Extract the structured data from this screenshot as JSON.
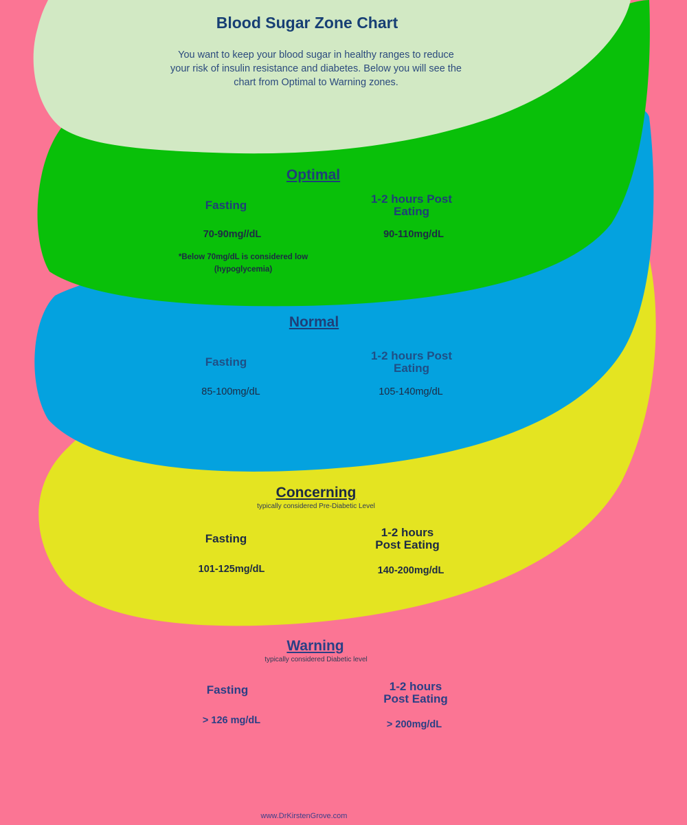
{
  "header": {
    "title": "Blood Sugar Zone Chart",
    "intro": "You want to keep your blood sugar in healthy ranges to reduce your risk of insulin resistance and diabetes.  Below you will see the chart from Optimal to Warning zones."
  },
  "colors": {
    "background": "#fb7594",
    "header_blob": "#d2e9c4",
    "optimal": "#09c009",
    "normal": "#04a2df",
    "concerning": "#e4e421"
  },
  "zones": {
    "optimal": {
      "label": "Optimal",
      "fasting_label": "Fasting",
      "post_label": "1-2 hours Post Eating",
      "fasting_value": "70-90mg//dL",
      "post_value": "90-110mg/dL",
      "note": "*Below 70mg/dL is considered low (hypoglycemia)"
    },
    "normal": {
      "label": "Normal",
      "fasting_label": "Fasting",
      "post_label": "1-2 hours Post Eating",
      "fasting_value": "85-100mg/dL",
      "post_value": "105-140mg/dL"
    },
    "concerning": {
      "label": "Concerning",
      "subtitle": "typically considered Pre-Diabetic Level",
      "fasting_label": "Fasting",
      "post_label": "1-2 hours Post Eating",
      "fasting_value": "101-125mg/dL",
      "post_value": "140-200mg/dL"
    },
    "warning": {
      "label": "Warning",
      "subtitle": "typically considered Diabetic level",
      "fasting_label": "Fasting",
      "post_label": "1-2 hours Post Eating",
      "fasting_value": "> 126 mg/dL",
      "post_value": "> 200mg/dL"
    }
  },
  "footer": {
    "website": "www.DrKirstenGrove.com"
  }
}
